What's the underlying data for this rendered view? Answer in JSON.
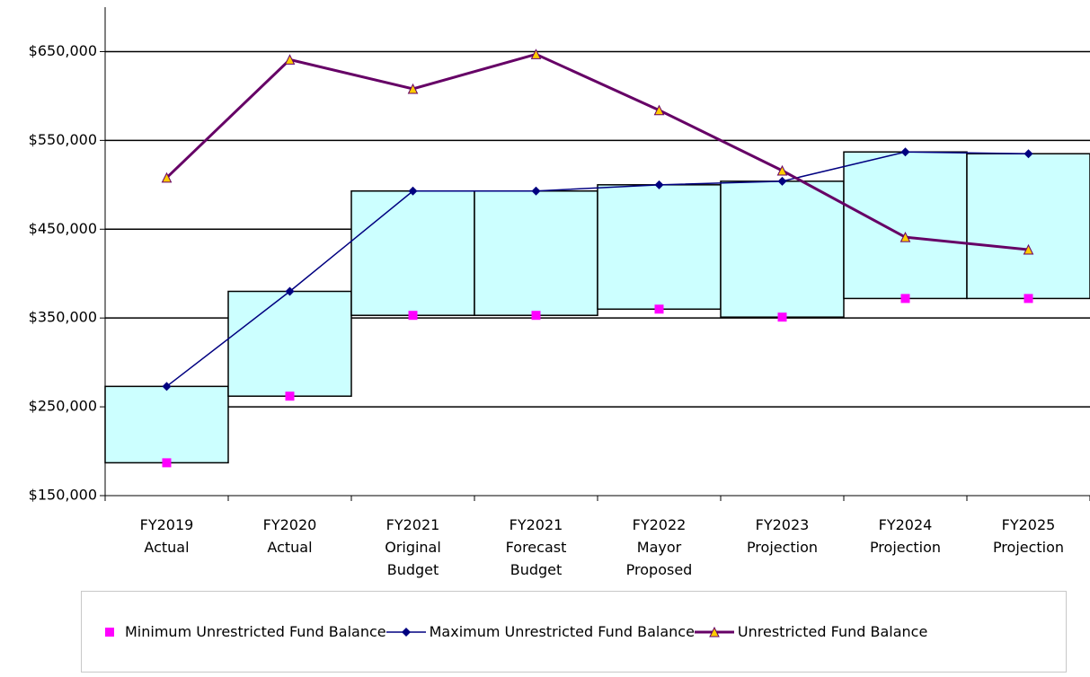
{
  "chart_data": {
    "type": "line",
    "categories": [
      "FY2019 Actual",
      "FY2020 Actual",
      "FY2021 Original Budget",
      "FY2021 Forecast Budget",
      "FY2022 Mayor Proposed",
      "FY2023 Projection",
      "FY2024 Projection",
      "FY2025 Projection"
    ],
    "series": [
      {
        "name": "Minimum Unrestricted Fund Balance",
        "color": "#ff00ff",
        "marker": "square",
        "line": false,
        "values": [
          187000,
          262000,
          353000,
          353000,
          360000,
          351000,
          372000,
          372000
        ]
      },
      {
        "name": "Maximum Unrestricted Fund Balance",
        "color": "#000080",
        "marker": "diamond",
        "line": true,
        "line_width": 1.5,
        "values": [
          273000,
          380000,
          493000,
          493000,
          500000,
          504000,
          537000,
          535000
        ]
      },
      {
        "name": "Unrestricted Fund Balance",
        "color": "#660066",
        "marker": "triangle",
        "marker_fill": "#ffcc00",
        "line": true,
        "line_width": 3,
        "values": [
          508000,
          641000,
          608000,
          647000,
          584000,
          516000,
          441000,
          427000
        ]
      }
    ],
    "up_down_bars": {
      "color": "#ccffff",
      "from_series": 0,
      "to_series": 1
    },
    "ylim": [
      150000,
      700000
    ],
    "yticks": [
      {
        "value": 150000,
        "label": "$150,000"
      },
      {
        "value": 250000,
        "label": "$250,000"
      },
      {
        "value": 350000,
        "label": "$350,000"
      },
      {
        "value": 450000,
        "label": "$450,000"
      },
      {
        "value": 550000,
        "label": "$550,000"
      },
      {
        "value": 650000,
        "label": "$650,000"
      }
    ],
    "grid": true,
    "legend": "bottom"
  }
}
